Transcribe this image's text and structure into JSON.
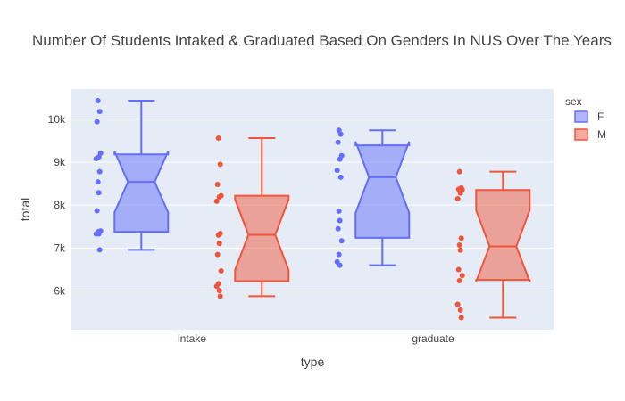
{
  "chart_data": {
    "type": "box",
    "title": "Number Of Students Intaked & Graduated Based On Genders In NUS Over The Years",
    "xlabel": "type",
    "ylabel": "total",
    "categories": [
      "intake",
      "graduate"
    ],
    "ylim": [
      5100,
      10700
    ],
    "yticks": [
      6000,
      7000,
      8000,
      9000,
      10000
    ],
    "ytick_labels": [
      "6k",
      "7k",
      "8k",
      "9k",
      "10k"
    ],
    "grid": true,
    "notched": true,
    "boxpoints": "all",
    "legend": {
      "title": "sex",
      "position": "right"
    },
    "colors": {
      "F": "#636efa",
      "M": "#ef553b",
      "plot_bg": "#e5ecf6"
    },
    "series": [
      {
        "name": "F",
        "color": "#636efa",
        "boxes": [
          {
            "category": "intake",
            "min": 6960,
            "q1": 7380,
            "median": 8540,
            "q3": 9180,
            "max": 10430,
            "notch_low": 7830,
            "notch_high": 9250,
            "points": [
              10430,
              10180,
              9940,
              9210,
              9120,
              9080,
              8780,
              8540,
              8290,
              7870,
              7400,
              7380,
              7330,
              7330,
              6960
            ]
          },
          {
            "category": "graduate",
            "min": 6600,
            "q1": 7240,
            "median": 8650,
            "q3": 9390,
            "max": 9740,
            "notch_low": 7820,
            "notch_high": 9480,
            "points": [
              9740,
              9650,
              9460,
              9150,
              9070,
              8810,
              8650,
              7860,
              7640,
              7450,
              7170,
              6850,
              6680,
              6600
            ]
          }
        ]
      },
      {
        "name": "M",
        "color": "#ef553b",
        "boxes": [
          {
            "category": "intake",
            "min": 5880,
            "q1": 6230,
            "median": 7310,
            "q3": 8220,
            "max": 9560,
            "notch_low": 6490,
            "notch_high": 8130,
            "points": [
              9560,
              8950,
              8480,
              8220,
              8190,
              8090,
              7340,
              7300,
              7110,
              6850,
              6470,
              6170,
              6110,
              6010,
              5880
            ]
          },
          {
            "category": "graduate",
            "min": 5380,
            "q1": 6260,
            "median": 7040,
            "q3": 8350,
            "max": 8780,
            "notch_low": 6220,
            "notch_high": 7880,
            "points": [
              8780,
              8400,
              8370,
              8360,
              8280,
              8150,
              7230,
              7070,
              6950,
              6500,
              6360,
              6240,
              5690,
              5560,
              5380
            ]
          }
        ]
      }
    ]
  }
}
